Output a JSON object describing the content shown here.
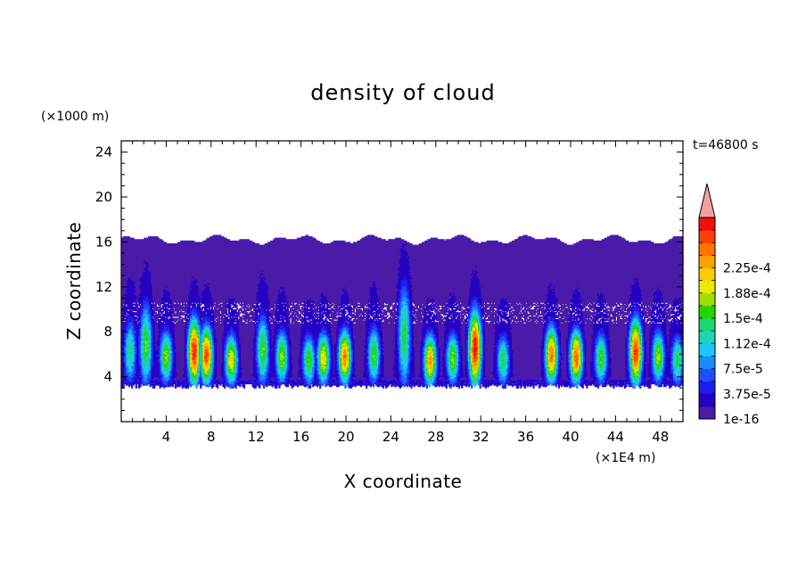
{
  "chart_data": {
    "type": "heatmap",
    "title": "density of cloud",
    "xlabel": "X coordinate",
    "ylabel": "Z coordinate",
    "x_unit": "(×1E4 m)",
    "y_unit": "(×1000 m)",
    "time_label": "t=46800 s",
    "xlim": [
      0,
      50
    ],
    "ylim": [
      0,
      25
    ],
    "x_ticks": [
      "4",
      "8",
      "12",
      "16",
      "20",
      "24",
      "28",
      "32",
      "36",
      "40",
      "44",
      "48"
    ],
    "y_ticks": [
      "4",
      "8",
      "12",
      "16",
      "20",
      "24"
    ],
    "colorbar": {
      "labels": [
        "1e-16",
        "3.75e-5",
        "7.5e-5",
        "1.12e-4",
        "1.5e-4",
        "1.88e-4",
        "2.25e-4"
      ],
      "colors": [
        "#4a1ba8",
        "#2600c2",
        "#1e1eea",
        "#1f4dff",
        "#1a8cff",
        "#19c8ff",
        "#1fd3b4",
        "#18d86e",
        "#27d400",
        "#9ee000",
        "#eaea00",
        "#ffcc00",
        "#ffa200",
        "#ff7400",
        "#ff3d00",
        "#f01010"
      ],
      "over_color": "#f4a0a0"
    },
    "cloud_layer": {
      "base_z": 3.0,
      "top_z_approx": 16.2,
      "background_density": "1e-16"
    },
    "convective_cells": [
      {
        "x": 0.8,
        "z_top": 10.5,
        "peak": 0.45
      },
      {
        "x": 2.2,
        "z_top": 12.5,
        "peak": 0.55
      },
      {
        "x": 4.0,
        "z_top": 9.0,
        "peak": 0.6
      },
      {
        "x": 6.5,
        "z_top": 10.5,
        "peak": 0.97
      },
      {
        "x": 7.6,
        "z_top": 9.5,
        "peak": 0.9
      },
      {
        "x": 9.8,
        "z_top": 8.0,
        "peak": 0.7
      },
      {
        "x": 12.6,
        "z_top": 11.0,
        "peak": 0.55
      },
      {
        "x": 14.3,
        "z_top": 9.0,
        "peak": 0.6
      },
      {
        "x": 16.7,
        "z_top": 8.0,
        "peak": 0.55
      },
      {
        "x": 18.0,
        "z_top": 8.5,
        "peak": 0.7
      },
      {
        "x": 19.9,
        "z_top": 9.0,
        "peak": 0.85
      },
      {
        "x": 22.5,
        "z_top": 9.5,
        "peak": 0.55
      },
      {
        "x": 25.2,
        "z_top": 15.0,
        "peak": 0.5
      },
      {
        "x": 27.5,
        "z_top": 8.0,
        "peak": 0.8
      },
      {
        "x": 29.5,
        "z_top": 8.5,
        "peak": 0.6
      },
      {
        "x": 31.5,
        "z_top": 11.5,
        "peak": 1.0
      },
      {
        "x": 34.0,
        "z_top": 8.0,
        "peak": 0.5
      },
      {
        "x": 38.3,
        "z_top": 9.5,
        "peak": 0.85
      },
      {
        "x": 40.5,
        "z_top": 9.0,
        "peak": 0.9
      },
      {
        "x": 42.7,
        "z_top": 8.5,
        "peak": 0.55
      },
      {
        "x": 45.8,
        "z_top": 10.5,
        "peak": 0.95
      },
      {
        "x": 47.8,
        "z_top": 9.0,
        "peak": 0.6
      },
      {
        "x": 49.5,
        "z_top": 8.0,
        "peak": 0.5
      }
    ]
  }
}
